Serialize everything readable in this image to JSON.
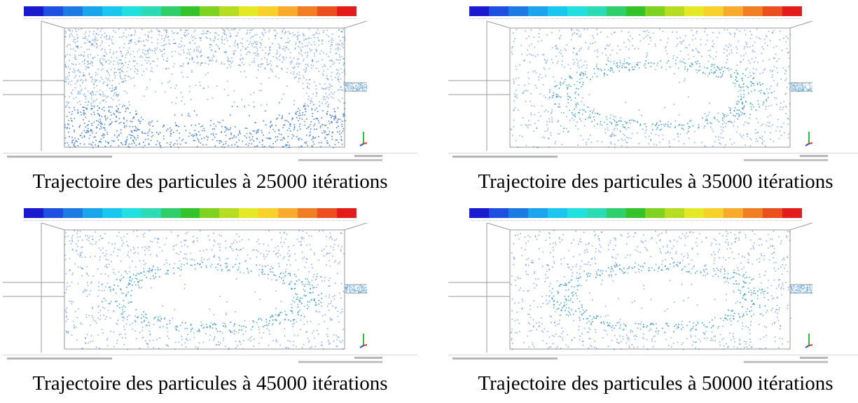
{
  "colormap": [
    "#1a1ad0",
    "#1f4fe0",
    "#1e7be6",
    "#1aa5ec",
    "#19c7ee",
    "#22dfe0",
    "#2cdab4",
    "#2fcf6c",
    "#33c32a",
    "#7ed321",
    "#b7dd23",
    "#e5e824",
    "#f7d12a",
    "#f7aa2b",
    "#f27e24",
    "#eb4f1f",
    "#e31b1b"
  ],
  "panels": [
    {
      "caption": "Trajectoire des particules à 25000 itérations",
      "regime": "fill",
      "points": [
        [
          0.05,
          0.32
        ],
        [
          0.16,
          0.42
        ],
        [
          0.3,
          0.46
        ],
        [
          0.46,
          0.5
        ],
        [
          0.63,
          0.53
        ],
        [
          0.74,
          0.6
        ],
        [
          0.76,
          0.68
        ],
        [
          0.68,
          0.82
        ],
        [
          0.55,
          0.86
        ],
        [
          0.38,
          0.78
        ],
        [
          0.3,
          0.64
        ],
        [
          0.26,
          0.5
        ]
      ],
      "accent": "#3cb8b8"
    },
    {
      "caption": "Trajectoire des particules à 35000 itérations",
      "regime": "loop-thin",
      "accent": "#40b8a8"
    },
    {
      "caption": "Trajectoire des particules à 45000 itérations",
      "regime": "loop",
      "accent": "#3fb6c4"
    },
    {
      "caption": "Trajectoire des particules à 50000 itérations",
      "regime": "loop",
      "accent": "#40b2c8"
    }
  ]
}
